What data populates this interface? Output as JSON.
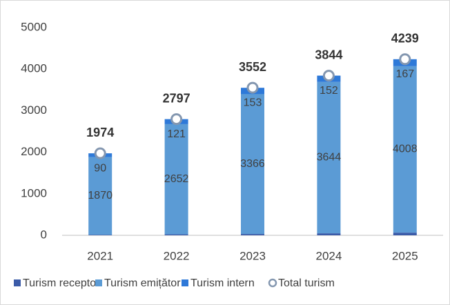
{
  "chart_data": {
    "type": "bar",
    "categories": [
      "2021",
      "2022",
      "2023",
      "2024",
      "2025"
    ],
    "series": [
      {
        "name": "Turism receptor",
        "color": "#3b5ba8",
        "values": [
          14,
          24,
          32,
          48,
          64
        ]
      },
      {
        "name": "Turism emițător",
        "color": "#5b9bd5",
        "values": [
          1870,
          2652,
          3366,
          3644,
          4008
        ]
      },
      {
        "name": "Turism intern",
        "color": "#2e79d8",
        "values": [
          90,
          121,
          153,
          152,
          167
        ]
      },
      {
        "name": "Total turism",
        "color": "#8497b0",
        "values": [
          1974,
          2797,
          3552,
          3844,
          4239
        ]
      }
    ],
    "ylim": [
      0,
      5000
    ],
    "yticks": [
      0,
      1000,
      2000,
      3000,
      4000,
      5000
    ],
    "grid": false
  }
}
